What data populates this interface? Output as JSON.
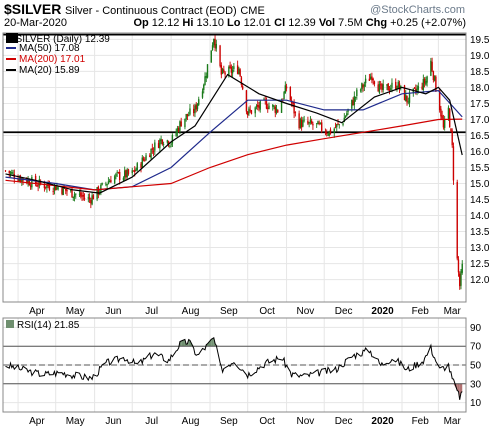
{
  "header": {
    "symbol": "$SILVER",
    "description": "Silver - Continuous Contract (EOD)",
    "exchange": "CME",
    "watermark": "@StockCharts.com",
    "date": "20-Mar-2020",
    "open_label": "Op",
    "open": "12.12",
    "high_label": "Hi",
    "high": "13.10",
    "low_label": "Lo",
    "low": "12.01",
    "close_label": "Cl",
    "close": "12.39",
    "volume_label": "Vol",
    "volume": "7.5M",
    "change_label": "Chg",
    "change": "+0.25 (+2.07%)"
  },
  "legend": {
    "price": "$SILVER (Daily) 12.39",
    "ma50": "MA(50) 17.08",
    "ma200": "MA(200) 17.01",
    "ma20": "MA(20) 15.89",
    "rsi": "RSI(14) 21.85"
  },
  "colors": {
    "up": "#1a7a1a",
    "down": "#cc0000",
    "ma50": "#1f2a8c",
    "ma200": "#d00000",
    "ma20": "#000000",
    "rsi_line": "#000000",
    "overbought_fill": "#6f8f6f",
    "oversold_fill": "#b07070",
    "hline": "#000000",
    "grid": "#e6e6e6"
  },
  "chart_data": [
    {
      "type": "candlestick",
      "title": "$SILVER (Daily)",
      "ylim": [
        11.3,
        19.7
      ],
      "y_ticks": [
        "12.0",
        "12.5",
        "13.0",
        "13.5",
        "14.0",
        "14.5",
        "15.0",
        "15.5",
        "16.0",
        "16.5",
        "17.0",
        "17.5",
        "18.0",
        "18.5",
        "19.0",
        "19.5"
      ],
      "x_ticks": [
        "Apr",
        "May",
        "Jun",
        "Jul",
        "Aug",
        "Sep",
        "Oct",
        "Nov",
        "Dec",
        "2020",
        "Feb",
        "Mar"
      ],
      "horizontal_lines": [
        19.65,
        16.6
      ],
      "close_path": [
        {
          "date": "2019-03-22",
          "close": 15.4
        },
        {
          "date": "2019-04-01",
          "close": 15.2
        },
        {
          "date": "2019-04-15",
          "close": 15.0
        },
        {
          "date": "2019-05-01",
          "close": 14.9
        },
        {
          "date": "2019-05-15",
          "close": 14.7
        },
        {
          "date": "2019-05-28",
          "close": 14.5
        },
        {
          "date": "2019-06-05",
          "close": 14.8
        },
        {
          "date": "2019-06-15",
          "close": 15.2
        },
        {
          "date": "2019-07-01",
          "close": 15.3
        },
        {
          "date": "2019-07-15",
          "close": 16.0
        },
        {
          "date": "2019-07-25",
          "close": 16.4
        },
        {
          "date": "2019-08-01",
          "close": 16.3
        },
        {
          "date": "2019-08-10",
          "close": 17.0
        },
        {
          "date": "2019-08-20",
          "close": 17.3
        },
        {
          "date": "2019-08-28",
          "close": 18.3
        },
        {
          "date": "2019-09-04",
          "close": 19.6
        },
        {
          "date": "2019-09-10",
          "close": 18.4
        },
        {
          "date": "2019-09-24",
          "close": 18.6
        },
        {
          "date": "2019-10-01",
          "close": 17.2
        },
        {
          "date": "2019-10-15",
          "close": 17.5
        },
        {
          "date": "2019-10-25",
          "close": 17.3
        },
        {
          "date": "2019-11-01",
          "close": 18.0
        },
        {
          "date": "2019-11-10",
          "close": 16.9
        },
        {
          "date": "2019-11-25",
          "close": 16.8
        },
        {
          "date": "2019-12-05",
          "close": 16.6
        },
        {
          "date": "2019-12-15",
          "close": 16.9
        },
        {
          "date": "2019-12-27",
          "close": 17.8
        },
        {
          "date": "2020-01-08",
          "close": 18.4
        },
        {
          "date": "2020-01-15",
          "close": 17.9
        },
        {
          "date": "2020-01-28",
          "close": 18.1
        },
        {
          "date": "2020-02-05",
          "close": 17.6
        },
        {
          "date": "2020-02-20",
          "close": 18.2
        },
        {
          "date": "2020-02-24",
          "close": 18.8
        },
        {
          "date": "2020-03-03",
          "close": 17.2
        },
        {
          "date": "2020-03-05",
          "close": 16.7
        },
        {
          "date": "2020-03-09",
          "close": 17.3
        },
        {
          "date": "2020-03-12",
          "close": 16.1
        },
        {
          "date": "2020-03-16",
          "close": 12.6
        },
        {
          "date": "2020-03-18",
          "close": 11.8
        },
        {
          "date": "2020-03-20",
          "close": 12.39
        }
      ],
      "series": [
        {
          "name": "MA(50)",
          "points": [
            {
              "date": "2019-03-22",
              "value": 15.2
            },
            {
              "date": "2019-05-01",
              "value": 15.0
            },
            {
              "date": "2019-06-01",
              "value": 14.8
            },
            {
              "date": "2019-07-01",
              "value": 14.9
            },
            {
              "date": "2019-08-01",
              "value": 15.5
            },
            {
              "date": "2019-09-01",
              "value": 16.6
            },
            {
              "date": "2019-10-01",
              "value": 17.6
            },
            {
              "date": "2019-11-01",
              "value": 17.6
            },
            {
              "date": "2019-12-01",
              "value": 17.3
            },
            {
              "date": "2020-01-01",
              "value": 17.3
            },
            {
              "date": "2020-02-01",
              "value": 17.8
            },
            {
              "date": "2020-03-01",
              "value": 17.9
            },
            {
              "date": "2020-03-20",
              "value": 17.08
            }
          ]
        },
        {
          "name": "MA(200)",
          "points": [
            {
              "date": "2019-03-22",
              "value": 15.1
            },
            {
              "date": "2019-06-01",
              "value": 14.8
            },
            {
              "date": "2019-08-01",
              "value": 15.0
            },
            {
              "date": "2019-09-01",
              "value": 15.5
            },
            {
              "date": "2019-10-01",
              "value": 15.9
            },
            {
              "date": "2019-11-01",
              "value": 16.2
            },
            {
              "date": "2019-12-01",
              "value": 16.4
            },
            {
              "date": "2020-01-01",
              "value": 16.6
            },
            {
              "date": "2020-02-01",
              "value": 16.8
            },
            {
              "date": "2020-03-01",
              "value": 17.0
            },
            {
              "date": "2020-03-20",
              "value": 17.01
            }
          ]
        },
        {
          "name": "MA(20)",
          "points": [
            {
              "date": "2019-03-22",
              "value": 15.3
            },
            {
              "date": "2019-04-15",
              "value": 15.1
            },
            {
              "date": "2019-05-15",
              "value": 14.8
            },
            {
              "date": "2019-06-05",
              "value": 14.7
            },
            {
              "date": "2019-07-01",
              "value": 15.2
            },
            {
              "date": "2019-08-01",
              "value": 16.3
            },
            {
              "date": "2019-08-20",
              "value": 16.8
            },
            {
              "date": "2019-09-15",
              "value": 18.4
            },
            {
              "date": "2019-10-10",
              "value": 17.8
            },
            {
              "date": "2019-11-01",
              "value": 17.5
            },
            {
              "date": "2019-11-25",
              "value": 17.2
            },
            {
              "date": "2019-12-15",
              "value": 16.9
            },
            {
              "date": "2020-01-10",
              "value": 17.7
            },
            {
              "date": "2020-02-01",
              "value": 18.0
            },
            {
              "date": "2020-02-20",
              "value": 17.8
            },
            {
              "date": "2020-03-01",
              "value": 18.0
            },
            {
              "date": "2020-03-10",
              "value": 17.6
            },
            {
              "date": "2020-03-20",
              "value": 15.89
            }
          ]
        }
      ]
    },
    {
      "type": "line",
      "title": "RSI(14)",
      "ylim": [
        0,
        100
      ],
      "y_ticks": [
        "10",
        "30",
        "50",
        "70",
        "90"
      ],
      "x_ticks": [
        "Apr",
        "May",
        "Jun",
        "Jul",
        "Aug",
        "Sep",
        "Oct",
        "Nov",
        "Dec",
        "2020",
        "Feb",
        "Mar"
      ],
      "reference_lines": [
        70,
        50,
        30
      ],
      "series": [
        {
          "name": "RSI(14)",
          "points": [
            {
              "date": "2019-03-22",
              "value": 50
            },
            {
              "date": "2019-04-05",
              "value": 45
            },
            {
              "date": "2019-04-20",
              "value": 40
            },
            {
              "date": "2019-05-05",
              "value": 42
            },
            {
              "date": "2019-05-20",
              "value": 38
            },
            {
              "date": "2019-05-30",
              "value": 36
            },
            {
              "date": "2019-06-10",
              "value": 52
            },
            {
              "date": "2019-06-25",
              "value": 58
            },
            {
              "date": "2019-07-05",
              "value": 50
            },
            {
              "date": "2019-07-18",
              "value": 62
            },
            {
              "date": "2019-07-30",
              "value": 55
            },
            {
              "date": "2019-08-08",
              "value": 72
            },
            {
              "date": "2019-08-15",
              "value": 75
            },
            {
              "date": "2019-08-22",
              "value": 60
            },
            {
              "date": "2019-09-04",
              "value": 78
            },
            {
              "date": "2019-09-10",
              "value": 45
            },
            {
              "date": "2019-09-20",
              "value": 55
            },
            {
              "date": "2019-10-01",
              "value": 40
            },
            {
              "date": "2019-10-15",
              "value": 52
            },
            {
              "date": "2019-10-28",
              "value": 58
            },
            {
              "date": "2019-11-05",
              "value": 40
            },
            {
              "date": "2019-11-15",
              "value": 38
            },
            {
              "date": "2019-11-28",
              "value": 42
            },
            {
              "date": "2019-12-10",
              "value": 45
            },
            {
              "date": "2019-12-24",
              "value": 60
            },
            {
              "date": "2020-01-06",
              "value": 66
            },
            {
              "date": "2020-01-15",
              "value": 50
            },
            {
              "date": "2020-01-25",
              "value": 58
            },
            {
              "date": "2020-02-05",
              "value": 45
            },
            {
              "date": "2020-02-18",
              "value": 55
            },
            {
              "date": "2020-02-24",
              "value": 68
            },
            {
              "date": "2020-03-02",
              "value": 45
            },
            {
              "date": "2020-03-09",
              "value": 50
            },
            {
              "date": "2020-03-12",
              "value": 35
            },
            {
              "date": "2020-03-16",
              "value": 22
            },
            {
              "date": "2020-03-18",
              "value": 16
            },
            {
              "date": "2020-03-20",
              "value": 21.85
            }
          ]
        }
      ]
    }
  ]
}
